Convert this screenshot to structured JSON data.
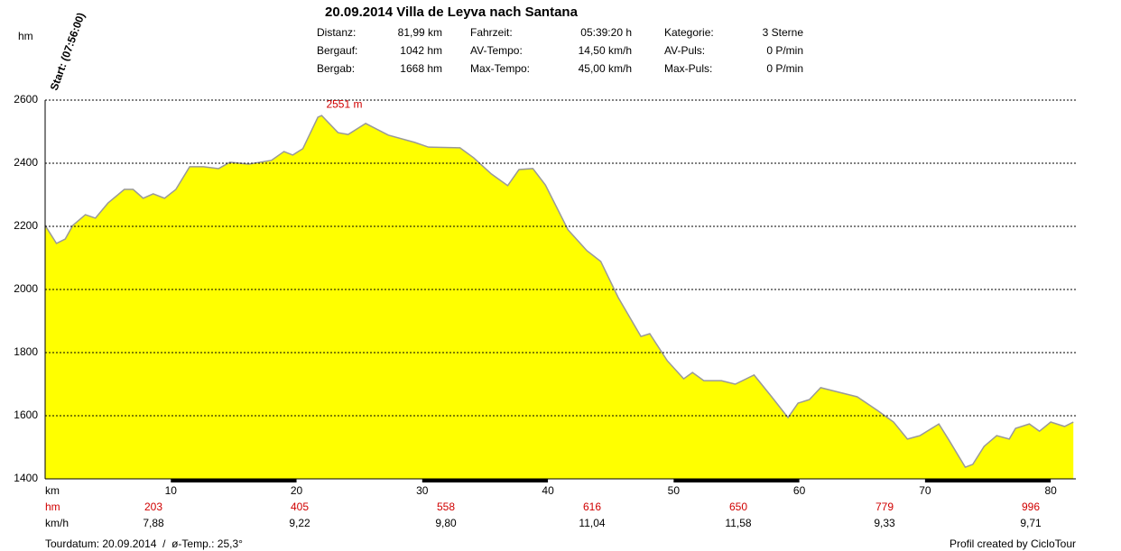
{
  "header": {
    "title": "20.09.2014 Villa de Leyva nach Santana",
    "stats": [
      {
        "label": "Distanz:",
        "value": "81,99 km"
      },
      {
        "label": "Fahrzeit:",
        "value": "05:39:20 h"
      },
      {
        "label": "Kategorie:",
        "value": "3 Sterne"
      },
      {
        "label": "Bergauf:",
        "value": "1042 hm"
      },
      {
        "label": "AV-Tempo:",
        "value": "14,50 km/h"
      },
      {
        "label": "AV-Puls:",
        "value": "0 P/min"
      },
      {
        "label": "Bergab:",
        "value": "1668 hm"
      },
      {
        "label": "Max-Tempo:",
        "value": "45,00 km/h"
      },
      {
        "label": "Max-Puls:",
        "value": "0 P/min"
      }
    ]
  },
  "chart_data": {
    "type": "area",
    "y_label": "hm",
    "x_label": "km",
    "start_label": "Start: (07:56:00)",
    "color": "#ffff00",
    "line_color": "#999999",
    "grid": true,
    "annotation": {
      "label": "2551 m",
      "x": 23.8,
      "value": 2551
    },
    "x": [
      0,
      0.9,
      1.6,
      2.2,
      3.2,
      4.0,
      5.0,
      6.3,
      7.0,
      7.8,
      8.6,
      9.5,
      10.4,
      11.5,
      12.6,
      13.8,
      14.7,
      16.2,
      18.0,
      19.0,
      19.7,
      20.5,
      21.7,
      22.0,
      23.3,
      24.1,
      25.5,
      27.3,
      29.4,
      30.5,
      33.0,
      34.1,
      35.5,
      36.8,
      37.7,
      38.8,
      39.8,
      41.6,
      43.1,
      44.2,
      45.6,
      47.4,
      48.1,
      49.5,
      50.8,
      51.5,
      52.4,
      53.8,
      54.9,
      56.4,
      57.8,
      59.1,
      59.9,
      60.8,
      61.7,
      63.2,
      64.6,
      66.2,
      67.5,
      68.6,
      69.6,
      71.1,
      71.9,
      73.2,
      73.8,
      74.7,
      75.7,
      76.7,
      77.2,
      78.3,
      79.1,
      80.0,
      81.1,
      81.8
    ],
    "values": [
      2203,
      2146,
      2160,
      2203,
      2237,
      2226,
      2274,
      2317,
      2317,
      2289,
      2303,
      2289,
      2317,
      2389,
      2389,
      2383,
      2403,
      2397,
      2409,
      2437,
      2426,
      2446,
      2546,
      2551,
      2497,
      2491,
      2526,
      2489,
      2466,
      2451,
      2449,
      2417,
      2366,
      2329,
      2380,
      2383,
      2331,
      2189,
      2123,
      2089,
      1974,
      1851,
      1860,
      1774,
      1717,
      1737,
      1711,
      1711,
      1700,
      1729,
      1660,
      1594,
      1640,
      1651,
      1689,
      1674,
      1660,
      1617,
      1580,
      1526,
      1537,
      1574,
      1523,
      1437,
      1446,
      1503,
      1537,
      1526,
      1560,
      1574,
      1551,
      1580,
      1566,
      1580
    ],
    "xlim": [
      0,
      82
    ],
    "ylim": [
      1400,
      2600
    ],
    "xticks": [
      10,
      20,
      30,
      40,
      50,
      60,
      70,
      80
    ],
    "yticks": [
      1400,
      1600,
      1800,
      2000,
      2200,
      2400,
      2600
    ]
  },
  "summary": {
    "rows": [
      {
        "label": "hm",
        "color": "#d00000",
        "values": [
          203,
          405,
          558,
          616,
          650,
          779,
          996
        ]
      },
      {
        "label": "km/h",
        "color": "#000000",
        "values": [
          "7,88",
          "9,22",
          "9,80",
          "11,04",
          "11,58",
          "9,33",
          "9,71"
        ]
      }
    ]
  },
  "footer": {
    "left": "Tourdatum: 20.09.2014  /  ø-Temp.: 25,3°",
    "right": "Profil created by CicloTour"
  }
}
